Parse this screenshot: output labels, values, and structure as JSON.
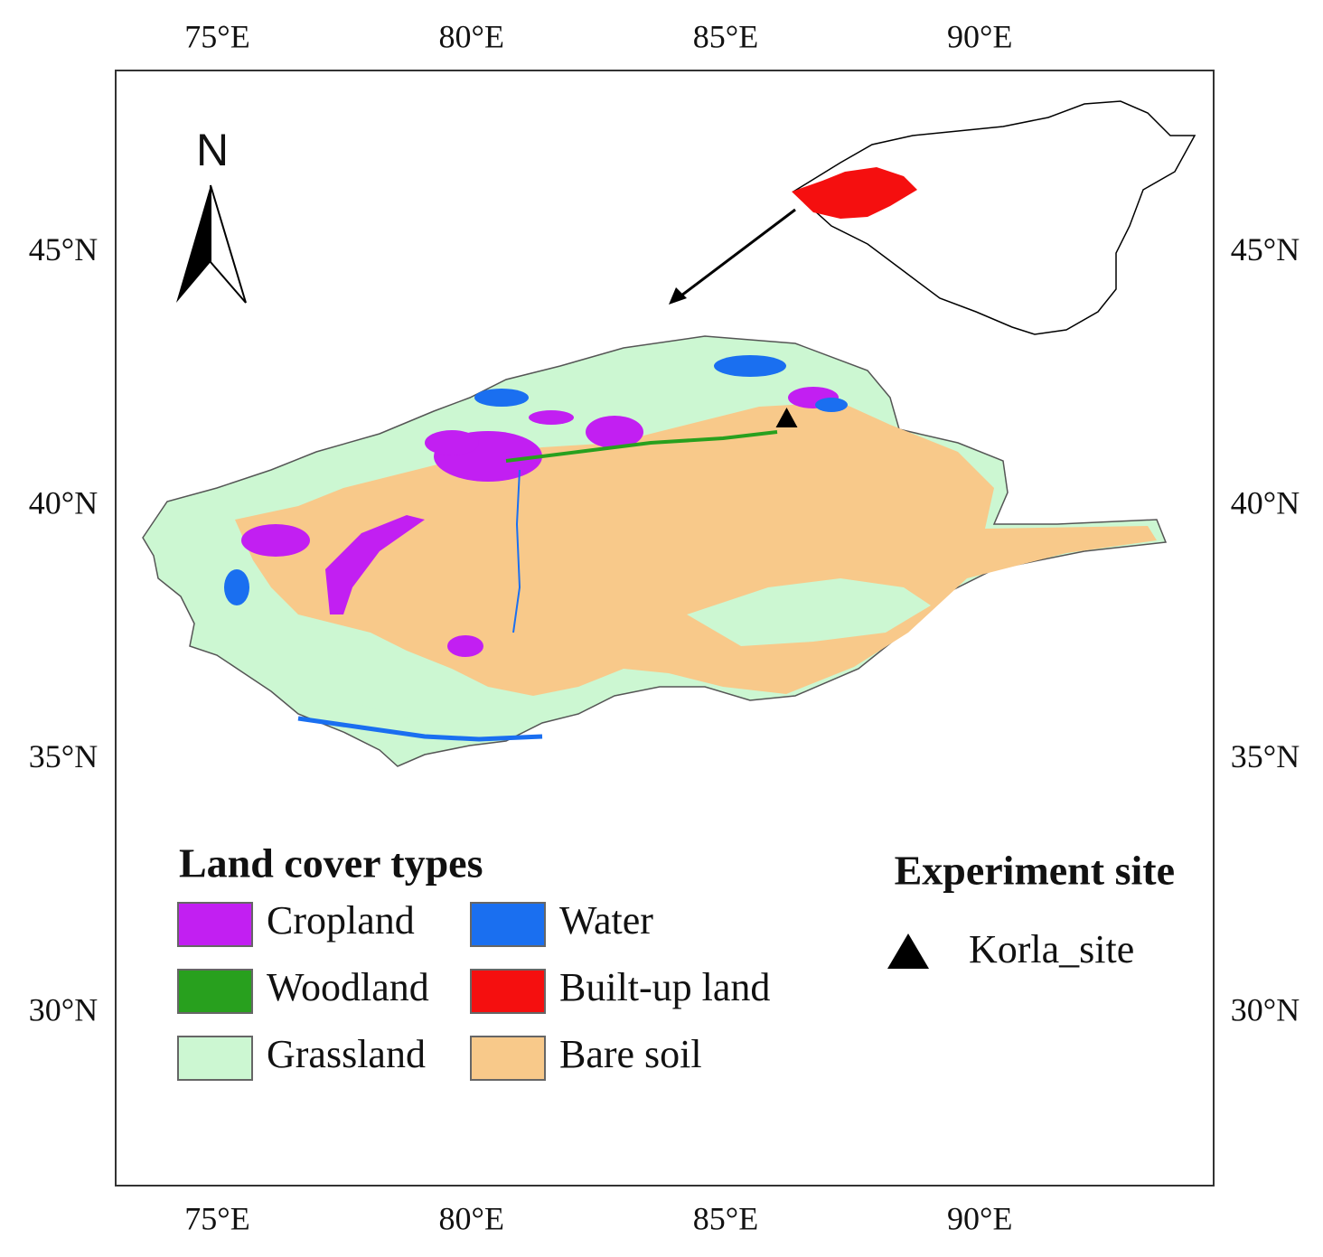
{
  "map": {
    "xlim": [
      73,
      94.6
    ],
    "ylim": [
      26.6,
      48.6
    ],
    "xticks": [
      {
        "value": 75,
        "label": "75°E"
      },
      {
        "value": 80,
        "label": "80°E"
      },
      {
        "value": 85,
        "label": "85°E"
      },
      {
        "value": 90,
        "label": "90°E"
      }
    ],
    "yticks": [
      {
        "value": 30,
        "label": "30°N"
      },
      {
        "value": 35,
        "label": "35°N"
      },
      {
        "value": 40,
        "label": "40°N"
      },
      {
        "value": 45,
        "label": "45°N"
      }
    ],
    "north": "N",
    "legend": {
      "title": "Land cover types",
      "items": [
        {
          "label": "Cropland",
          "color": "#c21ff2"
        },
        {
          "label": "Woodland",
          "color": "#28a01e"
        },
        {
          "label": "Grassland",
          "color": "#ccf7d2"
        },
        {
          "label": "Water",
          "color": "#1a6ff0"
        },
        {
          "label": "Built-up land",
          "color": "#f50f0f"
        },
        {
          "label": "Bare soil",
          "color": "#f8c98a"
        }
      ]
    },
    "site_legend": {
      "title": "Experiment site",
      "label": "Korla_site"
    },
    "site": {
      "lon": 86.2,
      "lat": 41.7
    }
  }
}
